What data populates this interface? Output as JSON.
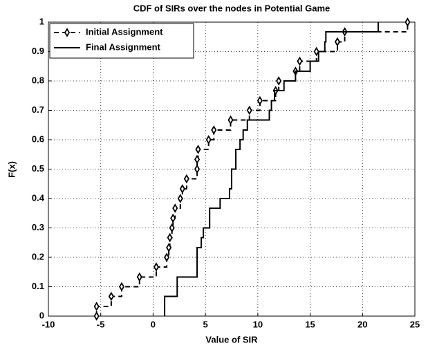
{
  "chart_data": {
    "type": "stairs",
    "title": "CDF of SIRs over the nodes in Potential Game",
    "x_label": "Value of SIR",
    "y_label": "F(x)",
    "xlim": [
      -10,
      25
    ],
    "xticks": [
      -10,
      -5,
      0,
      5,
      10,
      15,
      20,
      25
    ],
    "ylim": [
      0,
      1
    ],
    "yticks": [
      0,
      0.1,
      0.2,
      0.3,
      0.4,
      0.5,
      0.6,
      0.7,
      0.8,
      0.9,
      1
    ],
    "grid": true,
    "legend": "upper left",
    "series": [
      {
        "name": "Initial Assignment",
        "color": "#000000",
        "style": "dashed",
        "marker": "diamond",
        "x": [
          -5.4,
          -5.4,
          -4.0,
          -3.0,
          -1.3,
          0.3,
          1.3,
          1.5,
          1.6,
          1.8,
          1.9,
          2.1,
          2.6,
          2.8,
          3.2,
          4.2,
          4.2,
          4.3,
          5.3,
          5.8,
          7.4,
          9.2,
          10.2,
          11.7,
          12.0,
          13.6,
          14.0,
          15.6,
          17.6,
          18.3,
          24.3
        ],
        "values": [
          0,
          0.033,
          0.067,
          0.1,
          0.133,
          0.167,
          0.2,
          0.233,
          0.267,
          0.3,
          0.333,
          0.367,
          0.4,
          0.433,
          0.467,
          0.5,
          0.533,
          0.567,
          0.6,
          0.633,
          0.667,
          0.7,
          0.733,
          0.767,
          0.8,
          0.833,
          0.867,
          0.9,
          0.933,
          0.967,
          1
        ]
      },
      {
        "name": "Final Assignment",
        "color": "#000000",
        "style": "solid",
        "marker": "none",
        "x": [
          1.1,
          1.1,
          2.3,
          4.2,
          4.6,
          4.8,
          5.4,
          6.4,
          7.3,
          7.5,
          7.9,
          8.3,
          8.6,
          9.0,
          11.1,
          11.3,
          11.6,
          12.5,
          13.6,
          15.0,
          15.8,
          16.4,
          16.5,
          21.5
        ],
        "values": [
          0,
          0.067,
          0.133,
          0.233,
          0.267,
          0.3,
          0.367,
          0.4,
          0.433,
          0.5,
          0.567,
          0.6,
          0.633,
          0.667,
          0.7,
          0.733,
          0.767,
          0.8,
          0.833,
          0.867,
          0.9,
          0.933,
          0.967,
          1
        ]
      }
    ]
  }
}
